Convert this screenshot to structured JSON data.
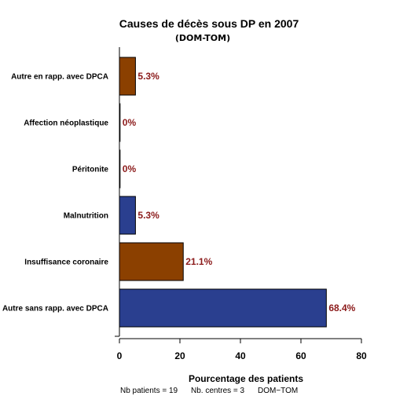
{
  "chart_data": {
    "type": "bar",
    "orientation": "horizontal",
    "title": "Causes de décès sous DP en 2007",
    "subtitle": "(DOM-TOM)",
    "xlabel": "Pourcentage des patients",
    "xlim": [
      0,
      80
    ],
    "xticks": [
      0,
      20,
      40,
      60,
      80
    ],
    "grid": false,
    "categories": [
      "Autre en rapp. avec DPCA",
      "Affection néoplastique",
      "Péritonite",
      "Malnutrition",
      "Insuffisance coronaire",
      "Autre sans rapp. avec DPCA"
    ],
    "values": [
      5.3,
      0,
      0,
      5.3,
      21.1,
      68.4
    ],
    "value_labels": [
      "5.3%",
      "0%",
      "0%",
      "5.3%",
      "21.1%",
      "68.4%"
    ],
    "bar_colors": [
      "#8b4000",
      "#8b4000",
      "#2a3f8f",
      "#2a3f8f",
      "#8b4000",
      "#2a3f8f"
    ],
    "label_color": "#8b1a1a"
  },
  "footer": {
    "patients": "Nb patients =  19",
    "centres": "Nb. centres =  3",
    "region": "DOM−TOM"
  }
}
